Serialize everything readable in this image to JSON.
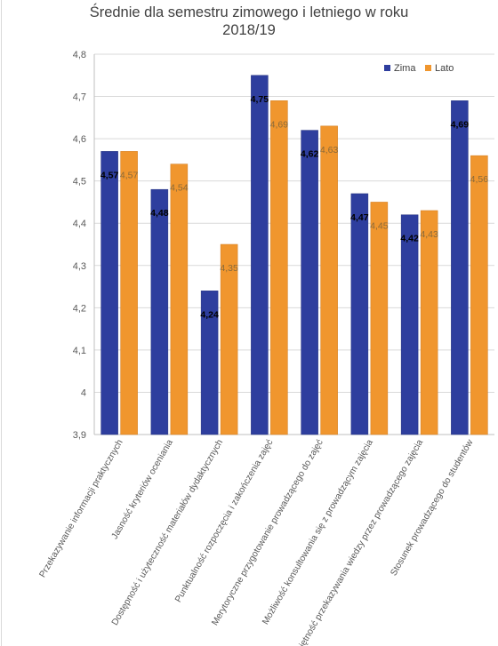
{
  "chart_data": {
    "type": "bar",
    "title_line1": "Średnie  dla  semestru  zimowego  i letniego  w roku",
    "title_line2": "2018/19",
    "categories": [
      "Przekazywanie informacji praktycznych",
      "Jasność kryteriów oceniania",
      "Dostępność i użyteczność materiałów dydaktycznych",
      "Punktualność rozpoczęcia i zakończenia zajęć",
      "Merytoryczne przygotowanie prowadzącego do zajęć",
      "Możliwość konsultowania się z prowadzącym zajęcia",
      "Umiejętność przekazywania wiedzy przez prowadzącego zajęcia",
      "Stosunek prowadzącego do studentów"
    ],
    "series": [
      {
        "name": "Zima",
        "color": "#2e3e9e",
        "values": [
          4.57,
          4.48,
          4.24,
          4.75,
          4.62,
          4.47,
          4.42,
          4.69
        ],
        "labels": [
          "4,57",
          "4,48",
          "4,24",
          "4,75",
          "4,62",
          "4,47",
          "4,42",
          "4,69"
        ]
      },
      {
        "name": "Lato",
        "color": "#f0962e",
        "values": [
          4.57,
          4.54,
          4.35,
          4.69,
          4.63,
          4.45,
          4.43,
          4.56
        ],
        "labels": [
          "4,57",
          "4,54",
          "4,35",
          "4,69",
          "4,63",
          "4,45",
          "4,43",
          "4,56"
        ]
      }
    ],
    "ylim": [
      3.9,
      4.8
    ],
    "yticks": [
      "3,9",
      "4",
      "4,1",
      "4,2",
      "4,3",
      "4,4",
      "4,5",
      "4,6",
      "4,7",
      "4,8"
    ],
    "grid": true,
    "legend_position": "top-right"
  }
}
